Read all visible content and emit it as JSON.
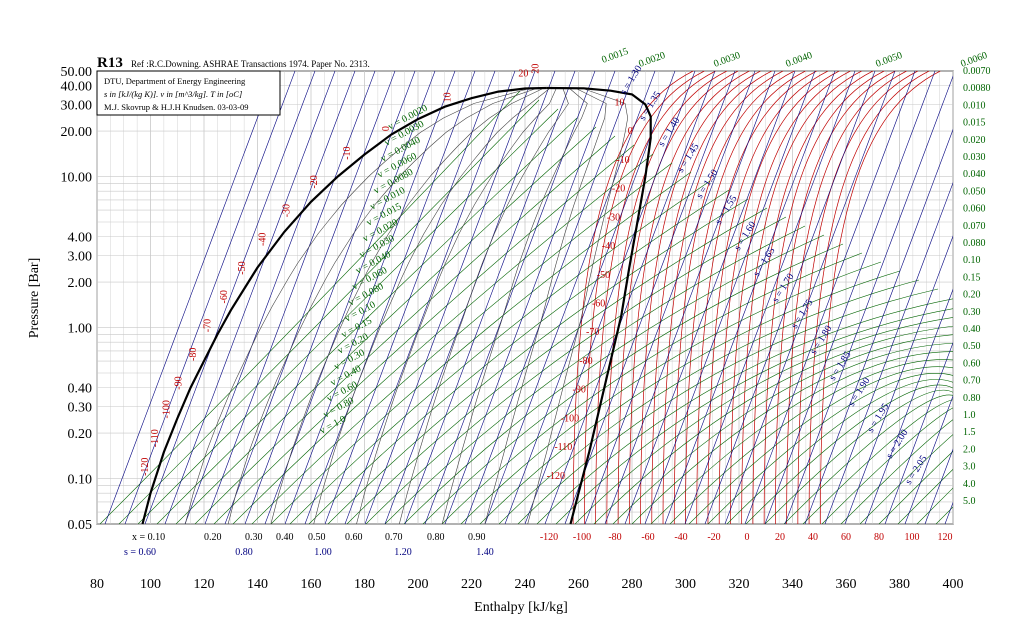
{
  "chart_data": {
    "type": "line",
    "title": "R13",
    "subtitle": "Ref :R.C.Downing. ASHRAE Transactions 1974. Paper No. 2313.",
    "credits": [
      "DTU, Department of Energy Engineering",
      "s in [kJ/(kg K)]. v in [m^3/kg]. T in [oC]",
      "M.J. Skovrup & H.J.H Knudsen. 03-03-09"
    ],
    "xlabel": "Enthalpy [kJ/kg]",
    "ylabel": "Pressure [Bar]",
    "xlim": [
      80,
      400
    ],
    "ylim": [
      0.05,
      50
    ],
    "yscale": "log",
    "grid": true,
    "x_ticks": [
      "80",
      "100",
      "120",
      "140",
      "160",
      "180",
      "200",
      "220",
      "240",
      "260",
      "280",
      "300",
      "320",
      "340",
      "360",
      "380",
      "400"
    ],
    "y_ticks": [
      {
        "v": 50,
        "label": "50.00"
      },
      {
        "v": 40,
        "label": "40.00"
      },
      {
        "v": 30,
        "label": "30.00"
      },
      {
        "v": 20,
        "label": "20.00"
      },
      {
        "v": 10,
        "label": "10.00"
      },
      {
        "v": 4,
        "label": "4.00"
      },
      {
        "v": 3,
        "label": "3.00"
      },
      {
        "v": 2,
        "label": "2.00"
      },
      {
        "v": 1,
        "label": "1.00"
      },
      {
        "v": 0.4,
        "label": "0.40"
      },
      {
        "v": 0.3,
        "label": "0.30"
      },
      {
        "v": 0.2,
        "label": "0.20"
      },
      {
        "v": 0.1,
        "label": "0.10"
      },
      {
        "v": 0.05,
        "label": "0.05"
      }
    ],
    "critical_point": {
      "h": 248,
      "p": 38.6
    },
    "saturated_liquid": [
      [
        97,
        0.05
      ],
      [
        100,
        0.08
      ],
      [
        105,
        0.15
      ],
      [
        110,
        0.25
      ],
      [
        115,
        0.4
      ],
      [
        120,
        0.6
      ],
      [
        125,
        0.9
      ],
      [
        130,
        1.3
      ],
      [
        140,
        2.5
      ],
      [
        150,
        4.3
      ],
      [
        160,
        6.8
      ],
      [
        170,
        10.0
      ],
      [
        180,
        14.0
      ],
      [
        190,
        19.0
      ],
      [
        200,
        24.0
      ],
      [
        210,
        29.0
      ],
      [
        220,
        33.0
      ],
      [
        230,
        36.5
      ],
      [
        240,
        38.3
      ],
      [
        248,
        38.6
      ]
    ],
    "saturated_vapor": [
      [
        248,
        38.6
      ],
      [
        262,
        38.4
      ],
      [
        272,
        37.0
      ],
      [
        280,
        35.0
      ],
      [
        285,
        30.0
      ],
      [
        287,
        25.0
      ],
      [
        287,
        18.0
      ],
      [
        285,
        10.0
      ],
      [
        282,
        5.0
      ],
      [
        279,
        2.5
      ],
      [
        276,
        1.2
      ],
      [
        272,
        0.6
      ],
      [
        268,
        0.3
      ],
      [
        264,
        0.15
      ],
      [
        260,
        0.08
      ],
      [
        257,
        0.05
      ]
    ],
    "quality_labels": [
      "x = 0.10",
      "0.20",
      "0.30",
      "0.40",
      "0.50",
      "0.60",
      "0.70",
      "0.80",
      "0.90"
    ],
    "entropy_axis_labels": [
      "s = 0.60",
      "0.80",
      "1.00",
      "1.20",
      "1.40"
    ],
    "temperature_axis_labels": [
      "-120",
      "-100",
      "-80",
      "-60",
      "-40",
      "-20",
      "0",
      "20",
      "40",
      "60",
      "80",
      "100",
      "120"
    ],
    "liquid_temperature_labels": [
      "-120",
      "-110",
      "-100",
      "-90",
      "-80",
      "-70",
      "-60",
      "-50",
      "-40",
      "-30",
      "-20",
      "-10",
      "0",
      "10",
      "20"
    ],
    "vapor_temperature_labels": [
      "-120",
      "-110",
      "-100",
      "-90",
      "-80",
      "-70",
      "-60",
      "-50",
      "-40",
      "-30",
      "-20",
      "-10",
      "0",
      "10",
      "20"
    ],
    "volume_labels_dome": [
      "v = 0.0020",
      "v = 0.0030",
      "v = 0.0040",
      "v = 0.0060",
      "v = 0.0080",
      "v = 0.010",
      "v = 0.015",
      "v = 0.020",
      "v = 0.030",
      "v = 0.040",
      "v = 0.060",
      "v = 0.080",
      "v = 0.10",
      "v = 0.15",
      "v = 0.20",
      "v = 0.30",
      "v = 0.40",
      "v = 0.60",
      "v = 0.80",
      "v = 1.0"
    ],
    "volume_labels_top": [
      "0.0015",
      "0.0020",
      "0.0030",
      "0.0040",
      "0.0050",
      "0.0060"
    ],
    "volume_labels_right": [
      "0.0070",
      "0.0080",
      "0.010",
      "0.015",
      "0.020",
      "0.030",
      "0.040",
      "0.050",
      "0.060",
      "0.070",
      "0.080",
      "0.10",
      "0.15",
      "0.20",
      "0.30",
      "0.40",
      "0.50",
      "0.60",
      "0.70",
      "0.80",
      "1.0",
      "1.5",
      "2.0",
      "3.0",
      "4.0",
      "5.0"
    ],
    "entropy_labels_vapor": [
      "s = 1.30",
      "s = 1.35",
      "s = 1.40",
      "s = 1.45",
      "s = 1.50",
      "s = 1.55",
      "s = 1.60",
      "s = 1.65",
      "s = 1.70",
      "s = 1.75",
      "s = 1.80",
      "s = 1.85",
      "s = 1.90",
      "s = 1.95",
      "s = 2.00",
      "s = 2.05"
    ],
    "colors": {
      "temperature": "#c00000",
      "volume": "#006400",
      "entropy": "#000080",
      "dome": "#000000",
      "grid": "#c8c8c8",
      "quality": "#000000"
    }
  }
}
